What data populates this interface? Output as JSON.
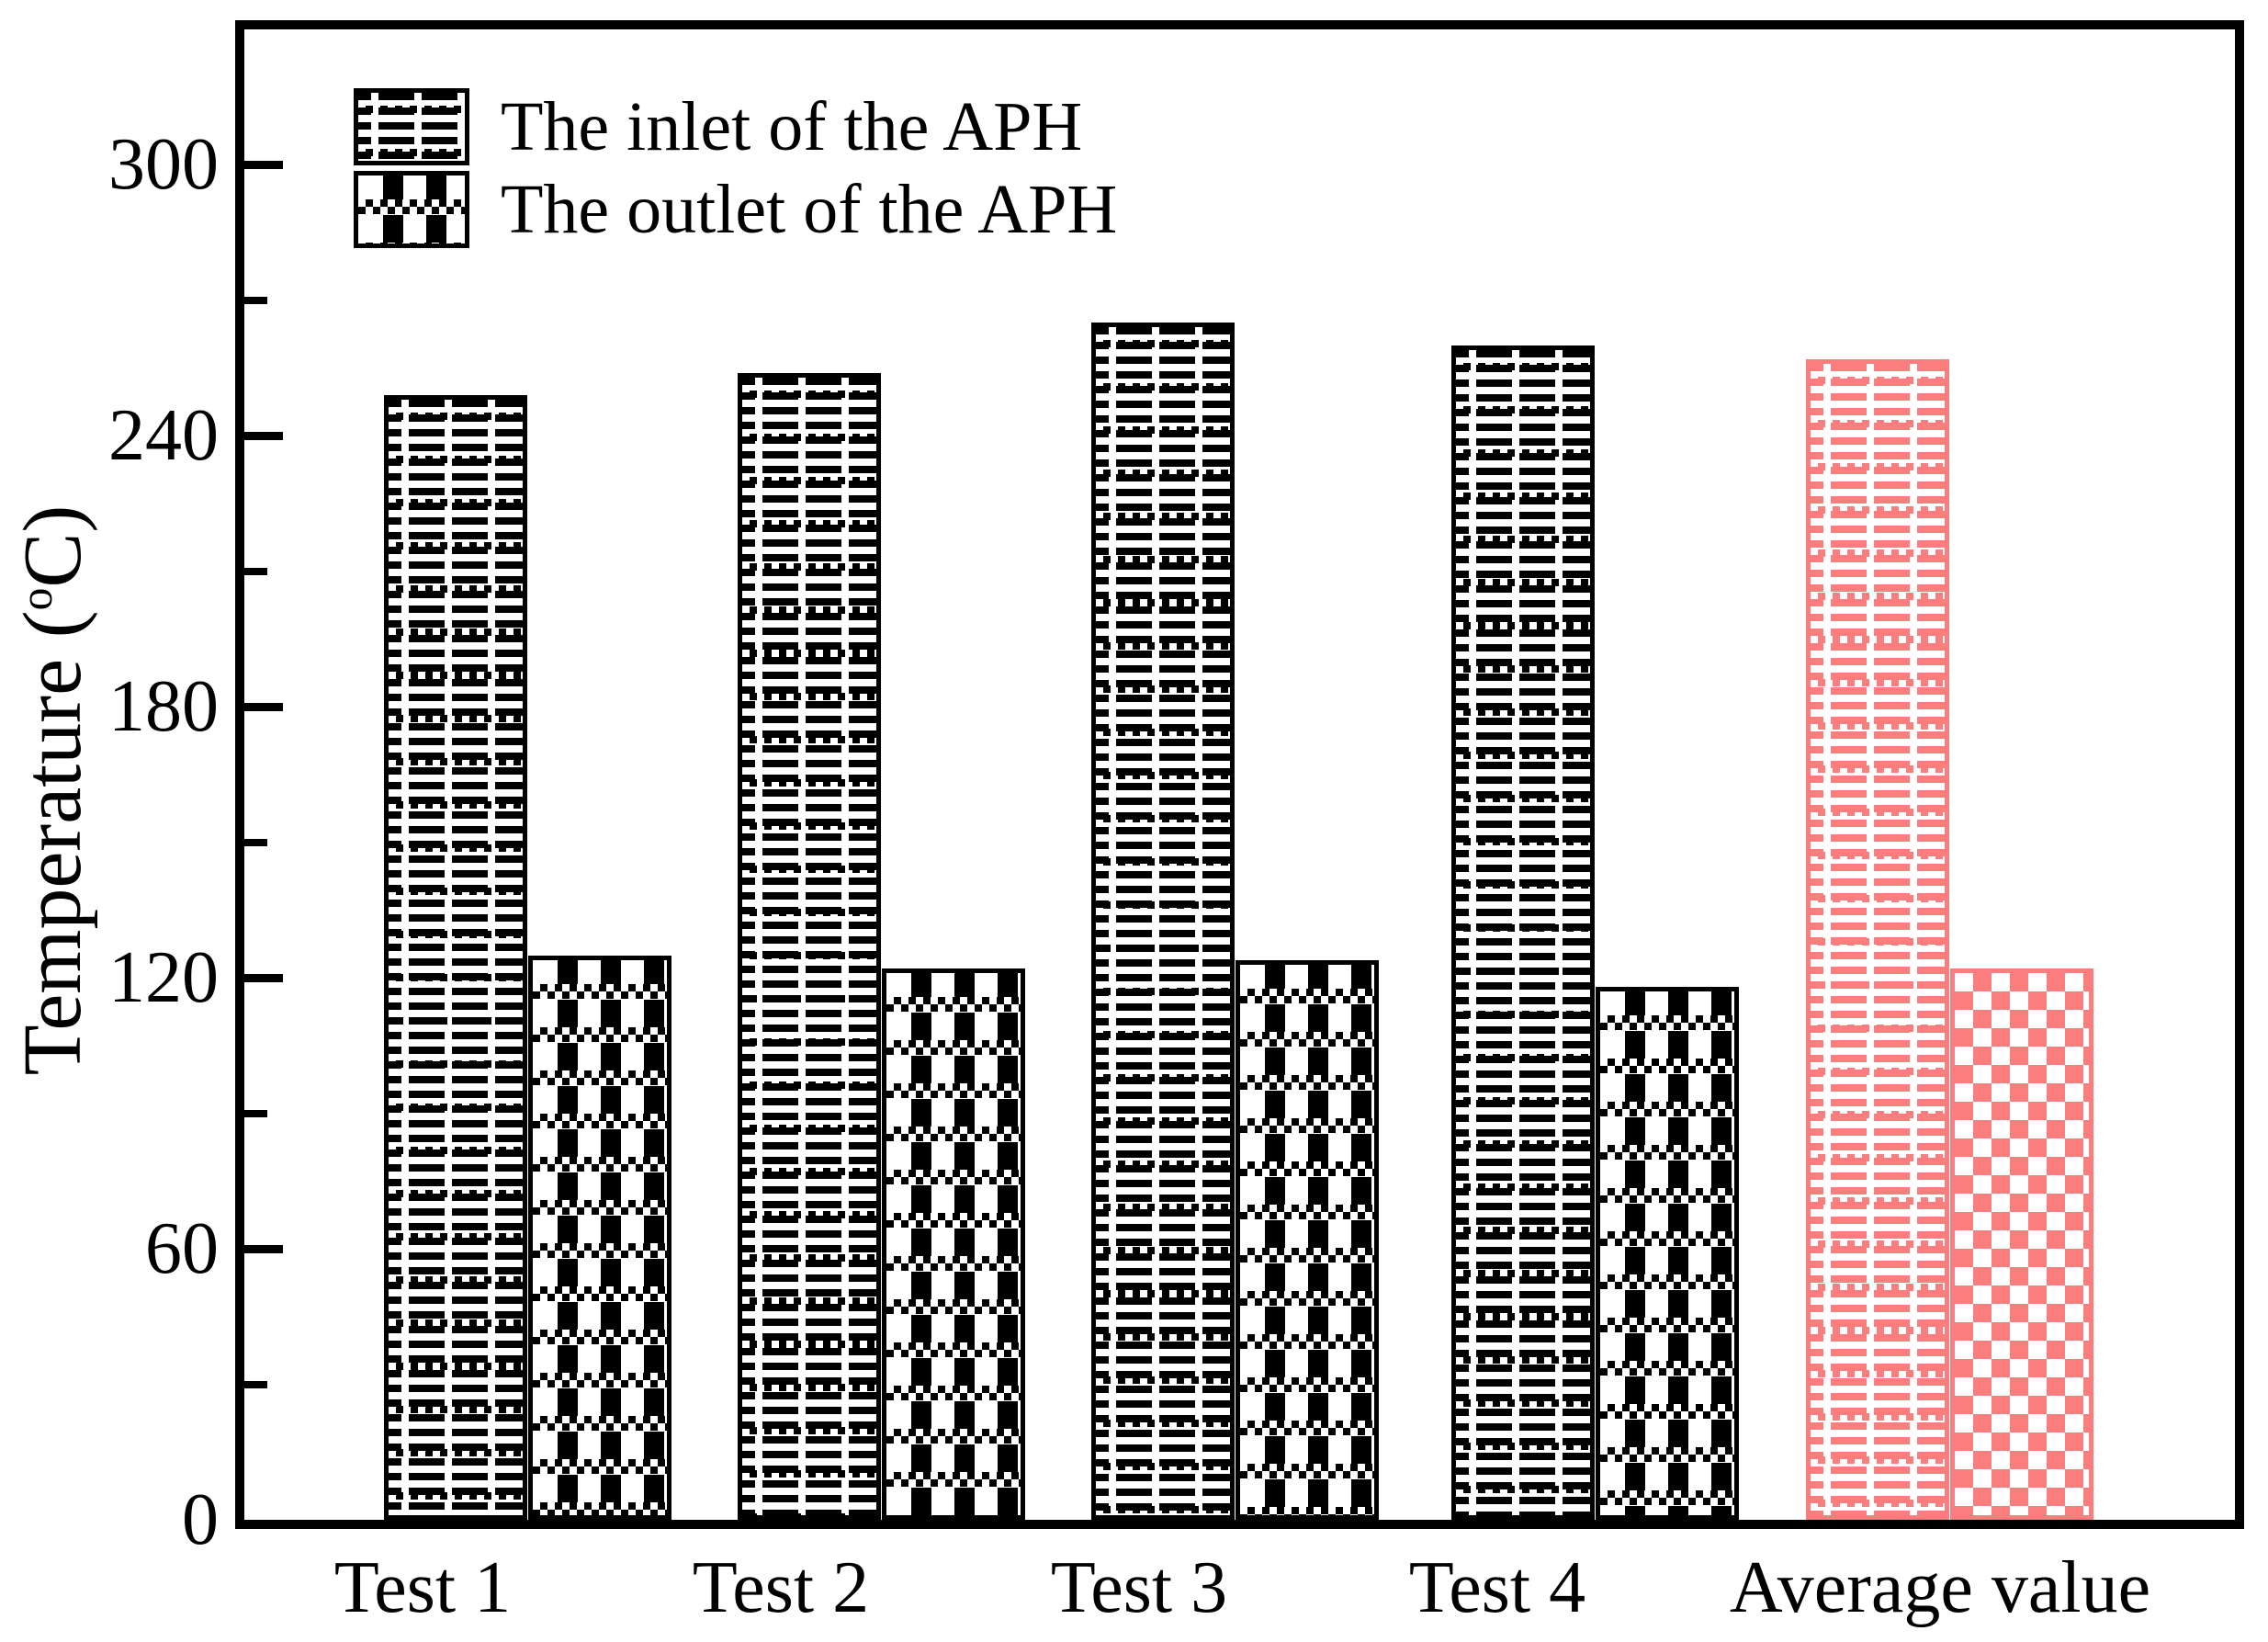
{
  "chart_data": {
    "type": "bar",
    "categories": [
      "Test 1",
      "Test 2",
      "Test 3",
      "Test 4",
      "Average value"
    ],
    "series": [
      {
        "name": "The inlet of the APH",
        "values": [
          249,
          254,
          265,
          260,
          257
        ]
      },
      {
        "name": "The outlet of the APH",
        "values": [
          125,
          122,
          124,
          118,
          122
        ]
      }
    ],
    "title": "",
    "xlabel": "",
    "ylabel": "Temperature (°C)",
    "ylim": [
      0,
      330
    ],
    "yticks": [
      0,
      60,
      120,
      180,
      240,
      300
    ],
    "minor_yticks": [
      30,
      90,
      150,
      210,
      270
    ],
    "grid": false,
    "legend_position": "top-left",
    "colors": {
      "test_bars": "#000000",
      "average_bars": "#FB7D7D",
      "background": "#ffffff"
    },
    "patterns": {
      "inlet": "dotted-grid",
      "outlet": "woven-check"
    }
  },
  "legend": {
    "items": [
      {
        "label": "The inlet of the APH"
      },
      {
        "label": "The outlet of the APH"
      }
    ]
  },
  "axis": {
    "ylabel_pre": "Temperature (",
    "ylabel_sup": "o",
    "ylabel_post": "C)"
  }
}
